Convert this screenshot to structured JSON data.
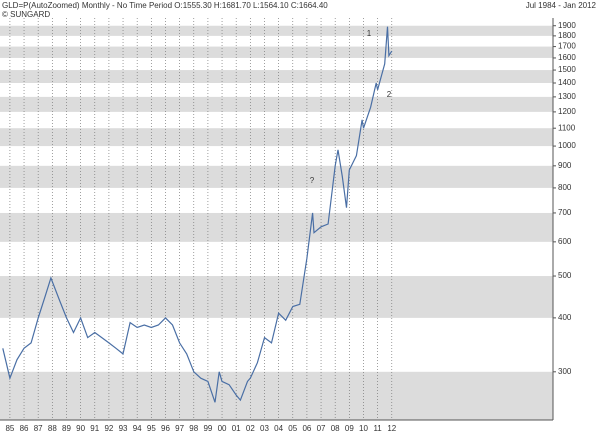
{
  "chart_data": {
    "type": "line",
    "title": "GLD=P(AutoZoomed) Monthly -  No Time Period O:1555.30 H:1681.70 L:1564.10 C:1664.40",
    "subtitle": "© SUNGARD",
    "date_range": "Jul 1984  -  Jan 2012",
    "log_scale": true,
    "grid": true,
    "band_color": "#dcdcdc",
    "annotations": [
      "1",
      "2",
      "?"
    ],
    "x": [
      1984.5,
      1985.0,
      1985.5,
      1986.0,
      1986.5,
      1987.0,
      1987.5,
      1987.9,
      1988.5,
      1989.0,
      1989.5,
      1990.0,
      1990.5,
      1991.0,
      1991.5,
      1992.0,
      1992.5,
      1993.0,
      1993.5,
      1994.0,
      1994.5,
      1995.0,
      1995.5,
      1996.0,
      1996.5,
      1997.0,
      1997.5,
      1998.0,
      1998.5,
      1999.0,
      1999.5,
      1999.8,
      2000.0,
      2000.5,
      2001.0,
      2001.3,
      2001.8,
      2002.0,
      2002.5,
      2003.0,
      2003.5,
      2004.0,
      2004.5,
      2005.0,
      2005.5,
      2006.0,
      2006.4,
      2006.5,
      2007.0,
      2007.5,
      2008.0,
      2008.2,
      2008.5,
      2008.8,
      2009.0,
      2009.5,
      2009.9,
      2010.0,
      2010.5,
      2010.9,
      2011.0,
      2011.5,
      2011.7,
      2011.8,
      2012.0
    ],
    "series": [
      {
        "name": "GLD=P",
        "color": "#4a6fa5",
        "values": [
          340,
          290,
          320,
          340,
          350,
          400,
          450,
          495,
          440,
          400,
          370,
          400,
          360,
          370,
          360,
          350,
          340,
          330,
          390,
          380,
          385,
          380,
          385,
          400,
          385,
          350,
          330,
          300,
          290,
          285,
          255,
          300,
          285,
          280,
          265,
          258,
          285,
          290,
          315,
          360,
          350,
          410,
          395,
          425,
          430,
          550,
          700,
          630,
          650,
          660,
          900,
          980,
          850,
          720,
          880,
          950,
          1150,
          1100,
          1230,
          1400,
          1350,
          1550,
          1890,
          1620,
          1660
        ]
      }
    ],
    "xlim": [
      1984.3,
      2023.4
    ],
    "xticks": [
      {
        "value": 1985,
        "label": "85"
      },
      {
        "value": 1986,
        "label": "86"
      },
      {
        "value": 1987,
        "label": "87"
      },
      {
        "value": 1988,
        "label": "88"
      },
      {
        "value": 1989,
        "label": "89"
      },
      {
        "value": 1990,
        "label": "90"
      },
      {
        "value": 1991,
        "label": "91"
      },
      {
        "value": 1992,
        "label": "92"
      },
      {
        "value": 1993,
        "label": "93"
      },
      {
        "value": 1994,
        "label": "94"
      },
      {
        "value": 1995,
        "label": "95"
      },
      {
        "value": 1996,
        "label": "96"
      },
      {
        "value": 1997,
        "label": "97"
      },
      {
        "value": 1998,
        "label": "98"
      },
      {
        "value": 1999,
        "label": "99"
      },
      {
        "value": 2000,
        "label": "00"
      },
      {
        "value": 2001,
        "label": "01"
      },
      {
        "value": 2002,
        "label": "02"
      },
      {
        "value": 2003,
        "label": "03"
      },
      {
        "value": 2004,
        "label": "04"
      },
      {
        "value": 2005,
        "label": "05"
      },
      {
        "value": 2006,
        "label": "06"
      },
      {
        "value": 2007,
        "label": "07"
      },
      {
        "value": 2008,
        "label": "08"
      },
      {
        "value": 2009,
        "label": "09"
      },
      {
        "value": 2010,
        "label": "10"
      },
      {
        "value": 2011,
        "label": "11"
      },
      {
        "value": 2012,
        "label": "12"
      }
    ],
    "ylim": [
      232,
      1980
    ],
    "yticks": [
      300,
      400,
      500,
      600,
      700,
      800,
      900,
      1000,
      1100,
      1200,
      1300,
      1400,
      1500,
      1600,
      1700,
      1800,
      1900
    ]
  }
}
